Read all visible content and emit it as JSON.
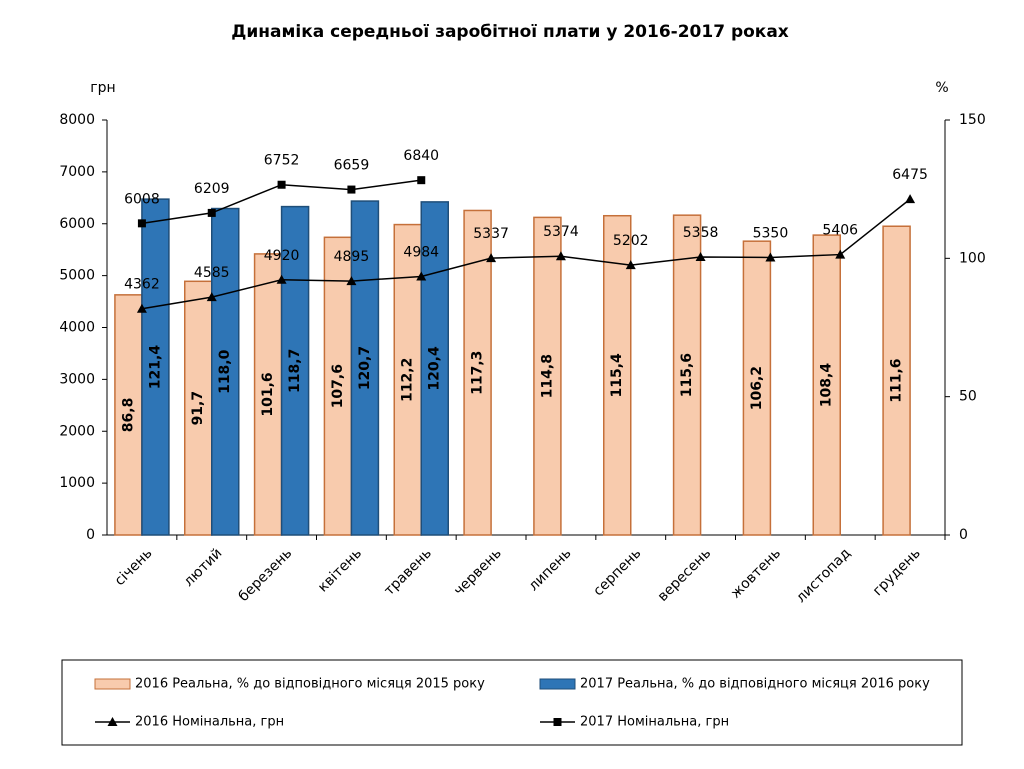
{
  "chart_data": {
    "type": "combo",
    "title": "Динаміка середньої заробітної плати у 2016-2017 роках",
    "y_label": "грн",
    "y2_label": "%",
    "categories": [
      "січень",
      "лютий",
      "березень",
      "квітень",
      "травень",
      "червень",
      "липень",
      "серпень",
      "вересень",
      "жовтень",
      "листопад",
      "грудень"
    ],
    "ylim": [
      0,
      8000
    ],
    "yticks": [
      0,
      1000,
      2000,
      3000,
      4000,
      5000,
      6000,
      7000,
      8000
    ],
    "y2lim": [
      0,
      150
    ],
    "y2ticks": [
      0,
      50,
      100,
      150
    ],
    "grid": false,
    "legend": "bottom",
    "series": [
      {
        "name": "2016 Реальна, % до відповідного місяця 2015 року",
        "type": "bar",
        "axis": "y2",
        "color": "#f8cbad",
        "stroke": "#c5703a",
        "values": [
          86.8,
          91.7,
          101.6,
          107.6,
          112.2,
          117.3,
          114.8,
          115.4,
          115.6,
          106.2,
          108.4,
          111.6
        ],
        "value_labels": [
          "86,8",
          "91,7",
          "101,6",
          "107,6",
          "112,2",
          "117,3",
          "114,8",
          "115,4",
          "115,6",
          "106,2",
          "108,4",
          "111,6"
        ]
      },
      {
        "name": "2017 Реальна, % до відповідного місяця 2016 року",
        "type": "bar",
        "axis": "y2",
        "color": "#2e75b6",
        "stroke": "#1f4e79",
        "values": [
          121.4,
          118.0,
          118.7,
          120.7,
          120.4,
          null,
          null,
          null,
          null,
          null,
          null,
          null
        ],
        "value_labels": [
          "121,4",
          "118,0",
          "118,7",
          "120,7",
          "120,4",
          null,
          null,
          null,
          null,
          null,
          null,
          null
        ]
      },
      {
        "name": "2016 Номінальна, грн",
        "type": "line",
        "axis": "y",
        "color": "#000000",
        "marker": "triangle",
        "values": [
          4362,
          4585,
          4920,
          4895,
          4984,
          5337,
          5374,
          5202,
          5358,
          5350,
          5406,
          6475
        ]
      },
      {
        "name": "2017 Номінальна, грн",
        "type": "line",
        "axis": "y",
        "color": "#000000",
        "marker": "square",
        "values": [
          6008,
          6209,
          6752,
          6659,
          6840,
          null,
          null,
          null,
          null,
          null,
          null,
          null
        ]
      }
    ]
  }
}
